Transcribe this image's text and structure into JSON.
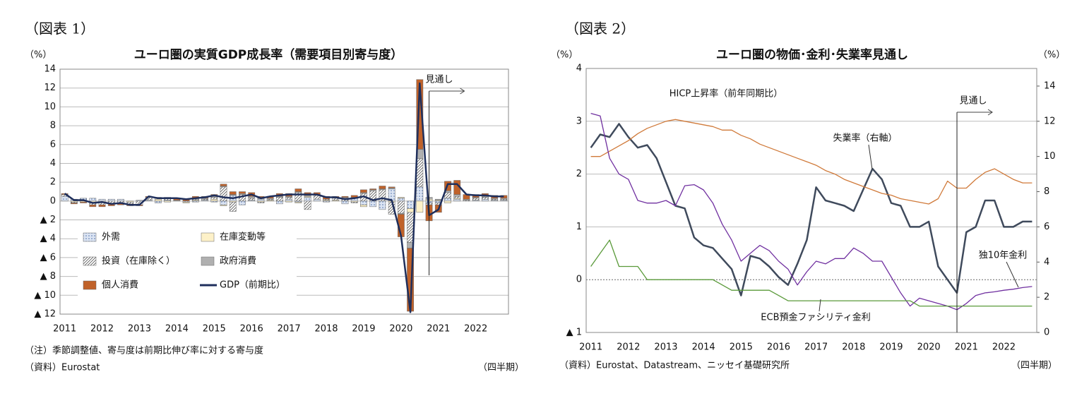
{
  "chart_data": [
    {
      "type": "bar",
      "stacked": true,
      "figure_label": "（図表 1）",
      "title": "ユーロ圏の実質GDP成長率（需要項目別寄与度）",
      "y_unit": "（%）",
      "note": "（注）季節調整値、寄与度は前期比伸び率に対する寄与度",
      "source": "（資料）Eurostat",
      "x_unit": "（四半期）",
      "forecast_label": "見通し",
      "categories": [
        "2011",
        null,
        null,
        null,
        "2012",
        null,
        null,
        null,
        "2013",
        null,
        null,
        null,
        "2014",
        null,
        null,
        null,
        "2015",
        null,
        null,
        null,
        "2016",
        null,
        null,
        null,
        "2017",
        null,
        null,
        null,
        "2018",
        null,
        null,
        null,
        "2019",
        null,
        null,
        null,
        "2020",
        null,
        null,
        null,
        "2021",
        null,
        null,
        null,
        "2022",
        null,
        null,
        null
      ],
      "ylim": [
        -12,
        14
      ],
      "yticks": [
        {
          "value": -12,
          "label": "▲ 12"
        },
        {
          "value": -10,
          "label": "▲ 10"
        },
        {
          "value": -8,
          "label": "▲ 8"
        },
        {
          "value": -6,
          "label": "▲ 6"
        },
        {
          "value": -4,
          "label": "▲ 4"
        },
        {
          "value": -2,
          "label": "▲ 2"
        },
        0,
        2,
        4,
        6,
        8,
        10,
        12,
        14
      ],
      "grid": true,
      "series": [
        {
          "name": "外需",
          "color": "#4f6fa8",
          "fill_style": "dots",
          "values": [
            0.5,
            0.2,
            0.3,
            0.3,
            0.2,
            0.2,
            0.2,
            0.0,
            0.1,
            0.1,
            -0.2,
            0.1,
            0.0,
            -0.1,
            -0.1,
            0.1,
            -0.1,
            -0.4,
            0.6,
            -0.4,
            0.1,
            0.2,
            0.0,
            -0.3,
            0.2,
            -0.1,
            0.4,
            0.2,
            -0.1,
            0.0,
            -0.3,
            0.3,
            -0.4,
            -0.6,
            -0.9,
            1.3,
            0.3,
            -0.8,
            1.5,
            -0.2,
            -0.2,
            0.3,
            0.2,
            0.0,
            0.1,
            0.2,
            0.1,
            0.1
          ]
        },
        {
          "name": "在庫変動等",
          "color": "#fdf1c8",
          "fill_style": "solid",
          "values": [
            0.0,
            -0.1,
            -0.1,
            -0.2,
            -0.1,
            0.0,
            0.0,
            -0.1,
            0.0,
            0.0,
            0.2,
            -0.1,
            0.0,
            -0.1,
            0.1,
            0.0,
            0.2,
            -0.1,
            -0.1,
            0.0,
            0.0,
            -0.1,
            0.1,
            0.0,
            -0.1,
            -0.1,
            0.1,
            0.0,
            0.1,
            0.1,
            0.0,
            -0.1,
            -0.2,
            0.0,
            0.0,
            -0.1,
            0.1,
            -0.4,
            -1.2,
            0.2,
            0.1,
            -0.2,
            0.1,
            0.0,
            0.0,
            0.0,
            0.0,
            0.0
          ]
        },
        {
          "name": "投資（在庫除く）",
          "color": "#555555",
          "fill_style": "hatch",
          "values": [
            0.2,
            -0.1,
            0.0,
            -0.2,
            -0.3,
            -0.3,
            -0.2,
            -0.2,
            -0.4,
            0.3,
            0.1,
            0.2,
            0.0,
            0.0,
            0.1,
            0.1,
            0.2,
            1.5,
            -1.0,
            0.7,
            0.2,
            -0.1,
            0.1,
            0.4,
            0.2,
            0.9,
            -0.9,
            0.4,
            0.1,
            0.2,
            0.3,
            -0.1,
            0.8,
            1.1,
            1.2,
            -1.3,
            -1.3,
            -3.2,
            3.0,
            -0.2,
            -0.2,
            0.6,
            0.2,
            0.1,
            0.2,
            0.2,
            0.1,
            0.1
          ]
        },
        {
          "name": "政府消費",
          "color": "#b0b0b0",
          "fill_style": "solid",
          "values": [
            0.0,
            0.0,
            0.0,
            0.0,
            0.0,
            0.0,
            0.0,
            0.0,
            0.0,
            0.0,
            0.0,
            0.0,
            0.1,
            0.0,
            0.1,
            0.1,
            0.1,
            0.1,
            0.1,
            0.1,
            0.2,
            0.1,
            0.1,
            0.1,
            0.1,
            0.1,
            0.1,
            0.1,
            0.0,
            0.1,
            0.1,
            0.1,
            0.1,
            0.1,
            0.1,
            0.1,
            -0.1,
            -0.6,
            1.0,
            0.2,
            0.1,
            0.2,
            0.2,
            0.1,
            0.1,
            0.1,
            0.1,
            0.1
          ]
        },
        {
          "name": "個人消費",
          "color": "#c0622a",
          "fill_style": "solid",
          "values": [
            0.1,
            -0.1,
            -0.1,
            -0.2,
            -0.2,
            -0.2,
            -0.2,
            -0.2,
            -0.1,
            0.1,
            0.1,
            0.1,
            0.2,
            0.2,
            0.2,
            0.2,
            0.2,
            0.2,
            0.3,
            0.2,
            0.4,
            0.2,
            0.2,
            0.3,
            0.3,
            0.3,
            0.3,
            0.2,
            0.3,
            0.1,
            0.1,
            0.2,
            0.3,
            0.1,
            0.3,
            0.1,
            -2.4,
            -6.7,
            7.4,
            -1.7,
            -0.8,
            1.0,
            1.5,
            0.5,
            0.3,
            0.3,
            0.3,
            0.3
          ]
        },
        {
          "name": "GDP（前期比）",
          "color": "#1f2f5c",
          "type": "line",
          "values": [
            0.8,
            0.1,
            0.1,
            -0.2,
            -0.1,
            -0.3,
            -0.2,
            -0.4,
            -0.4,
            0.5,
            0.3,
            0.3,
            0.3,
            0.2,
            0.3,
            0.4,
            0.6,
            0.4,
            0.3,
            0.5,
            0.7,
            0.3,
            0.5,
            0.6,
            0.7,
            0.7,
            0.7,
            0.7,
            0.4,
            0.4,
            0.2,
            0.3,
            0.5,
            0.1,
            0.3,
            0.1,
            -3.7,
            -11.8,
            12.5,
            -1.5,
            -0.9,
            1.8,
            1.8,
            0.7,
            0.6,
            0.6,
            0.5,
            0.5
          ]
        }
      ]
    },
    {
      "type": "line",
      "figure_label": "（図表 2）",
      "title": "ユーロ圏の物価･金利･失業率見通し",
      "y_unit": "（%）",
      "y2_unit": "（%）",
      "source": "（資料）Eurostat、Datastream、ニッセイ基礎研究所",
      "x_unit": "（四半期）",
      "forecast_label": "見通し",
      "categories": [
        "2011",
        null,
        null,
        null,
        "2012",
        null,
        null,
        null,
        "2013",
        null,
        null,
        null,
        "2014",
        null,
        null,
        null,
        "2015",
        null,
        null,
        null,
        "2016",
        null,
        null,
        null,
        "2017",
        null,
        null,
        null,
        "2018",
        null,
        null,
        null,
        "2019",
        null,
        null,
        null,
        "2020",
        null,
        null,
        null,
        "2021",
        null,
        null,
        null,
        "2022",
        null,
        null,
        null
      ],
      "ylim": [
        -1,
        4
      ],
      "yticks": [
        {
          "value": -1,
          "label": "▲ 1"
        },
        0,
        1,
        2,
        3,
        4
      ],
      "y2lim": [
        0,
        15
      ],
      "y2ticks": [
        0,
        2,
        4,
        6,
        8,
        10,
        12,
        14
      ],
      "grid": true,
      "series": [
        {
          "name": "HICP上昇率（前年同期比）",
          "color": "#3f4a5c",
          "width": 2.5,
          "values": [
            2.5,
            2.75,
            2.7,
            2.95,
            2.7,
            2.5,
            2.55,
            2.3,
            1.85,
            1.4,
            1.35,
            0.8,
            0.65,
            0.6,
            0.4,
            0.2,
            -0.3,
            0.45,
            0.4,
            0.25,
            0.05,
            -0.1,
            0.3,
            0.75,
            1.75,
            1.5,
            1.45,
            1.4,
            1.3,
            1.7,
            2.1,
            1.9,
            1.45,
            1.4,
            1.0,
            1.0,
            1.1,
            0.25,
            0.0,
            -0.25,
            0.9,
            1.0,
            1.5,
            1.5,
            1.0,
            1.0,
            1.1,
            1.1
          ]
        },
        {
          "name": "失業率（右軸）",
          "color": "#d07a3a",
          "width": 1.3,
          "axis": "y2",
          "values": [
            10.0,
            10.0,
            10.3,
            10.6,
            10.9,
            11.3,
            11.6,
            11.8,
            12.0,
            12.1,
            12.0,
            11.9,
            11.8,
            11.7,
            11.5,
            11.5,
            11.2,
            11.0,
            10.7,
            10.5,
            10.3,
            10.1,
            9.9,
            9.7,
            9.5,
            9.2,
            9.0,
            8.7,
            8.5,
            8.3,
            8.1,
            7.9,
            7.8,
            7.6,
            7.5,
            7.4,
            7.3,
            7.6,
            8.6,
            8.2,
            8.2,
            8.7,
            9.1,
            9.3,
            9.0,
            8.7,
            8.5,
            8.5
          ]
        },
        {
          "name": "独10年金利",
          "color": "#7030a0",
          "width": 1.3,
          "values": [
            3.15,
            3.1,
            2.3,
            2.0,
            1.9,
            1.5,
            1.45,
            1.45,
            1.5,
            1.4,
            1.78,
            1.8,
            1.7,
            1.45,
            1.05,
            0.75,
            0.35,
            0.5,
            0.65,
            0.55,
            0.35,
            0.2,
            -0.1,
            0.15,
            0.35,
            0.3,
            0.4,
            0.4,
            0.6,
            0.5,
            0.35,
            0.35,
            0.05,
            -0.25,
            -0.5,
            -0.35,
            -0.4,
            -0.45,
            -0.5,
            -0.57,
            -0.45,
            -0.3,
            -0.25,
            -0.23,
            -0.2,
            -0.18,
            -0.15,
            -0.13
          ]
        },
        {
          "name": "ECB預金ファシリティ金利",
          "color": "#5a9a3a",
          "width": 1.3,
          "values": [
            0.25,
            0.5,
            0.75,
            0.25,
            0.25,
            0.25,
            0,
            0,
            0,
            0,
            0,
            0,
            0,
            0,
            -0.1,
            -0.2,
            -0.2,
            -0.2,
            -0.2,
            -0.2,
            -0.3,
            -0.4,
            -0.4,
            -0.4,
            -0.4,
            -0.4,
            -0.4,
            -0.4,
            -0.4,
            -0.4,
            -0.4,
            -0.4,
            -0.4,
            -0.4,
            -0.4,
            -0.5,
            -0.5,
            -0.5,
            -0.5,
            -0.5,
            -0.5,
            -0.5,
            -0.5,
            -0.5,
            -0.5,
            -0.5,
            -0.5,
            -0.5
          ]
        }
      ]
    }
  ]
}
